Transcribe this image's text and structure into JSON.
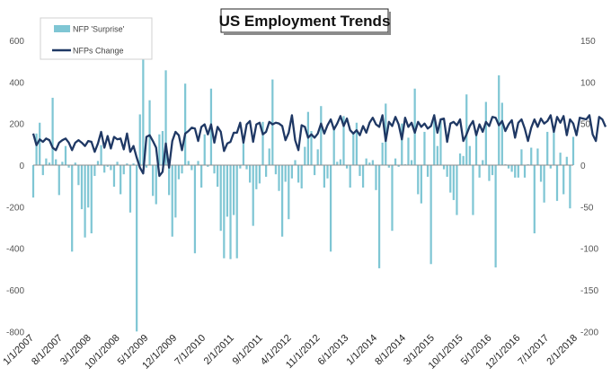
{
  "chart_data": {
    "type": "bar",
    "title": "US Employment Trends",
    "left_axis": {
      "min": -800,
      "max": 700,
      "ticks": [
        600,
        400,
        200,
        0,
        -200,
        -400,
        -600,
        -800
      ]
    },
    "right_axis": {
      "min": -200,
      "max": 175,
      "ticks": [
        150,
        100,
        50,
        0,
        -50,
        -100,
        -150,
        -200
      ]
    },
    "x_tick_labels": [
      "1/1/2007",
      "8/1/2007",
      "3/1/2008",
      "10/1/2008",
      "5/1/2009",
      "12/1/2009",
      "7/1/2010",
      "2/1/2011",
      "9/1/2011",
      "4/1/2012",
      "11/1/2012",
      "6/1/2013",
      "1/1/2014",
      "8/1/2014",
      "3/1/2015",
      "10/1/2015",
      "5/1/2016",
      "12/1/2016",
      "7/1/2017",
      "2/1/2018"
    ],
    "legend": {
      "position": "top-left"
    },
    "grid": false,
    "series": [
      {
        "name": "NFP 'Surprise'",
        "kind": "bar",
        "axis": "right",
        "color": "#7fc6d4",
        "values": [
          -39,
          38,
          51,
          -12,
          8,
          3,
          81,
          7,
          -36,
          4,
          23,
          -3,
          -104,
          3,
          -24,
          -53,
          -87,
          -51,
          -82,
          -13,
          5,
          24,
          -9,
          -2,
          -6,
          -26,
          4,
          -35,
          -11,
          2,
          -57,
          2,
          -200,
          61,
          170,
          -3,
          78,
          -37,
          -47,
          37,
          41,
          114,
          -36,
          -86,
          -63,
          -17,
          -10,
          98,
          5,
          -6,
          -106,
          5,
          -27,
          37,
          -2,
          92,
          -10,
          -26,
          -79,
          -112,
          -62,
          -113,
          -60,
          -112,
          -4,
          33,
          -5,
          -21,
          -73,
          -29,
          -22,
          52,
          -14,
          20,
          103,
          -11,
          -31,
          -86,
          -20,
          -65,
          -16,
          6,
          -21,
          -28,
          22,
          64,
          41,
          -12,
          19,
          71,
          -27,
          -16,
          -104,
          44,
          4,
          7,
          59,
          -4,
          -27,
          39,
          51,
          -13,
          -27,
          8,
          3,
          6,
          -30,
          -124,
          27,
          74,
          -3,
          -79,
          8,
          -2,
          50,
          1,
          33,
          6,
          92,
          -35,
          -46,
          40,
          -14,
          -119,
          61,
          23,
          56,
          -5,
          -14,
          -33,
          -42,
          -60,
          14,
          11,
          85,
          23,
          -60,
          40,
          -15,
          6,
          76,
          -19,
          -12,
          -123,
          108,
          75,
          1,
          -4,
          -8,
          -15,
          -15,
          19,
          -15,
          1,
          21,
          -82,
          20,
          -20,
          -45,
          40,
          -4,
          40,
          -43,
          15,
          -35,
          10,
          -52,
          34
        ]
      },
      {
        "name": "NFPs Change",
        "kind": "line",
        "axis": "right",
        "color": "#1f3864",
        "values": [
          38,
          24,
          31,
          28,
          32,
          30,
          21,
          18,
          27,
          30,
          32,
          27,
          18,
          27,
          30,
          27,
          23,
          29,
          28,
          16,
          26,
          40,
          21,
          35,
          20,
          34,
          31,
          32,
          19,
          38,
          16,
          23,
          9,
          -3,
          -10,
          34,
          36,
          29,
          21,
          -13,
          -8,
          26,
          -3,
          29,
          40,
          36,
          18,
          38,
          41,
          45,
          44,
          29,
          46,
          49,
          37,
          49,
          27,
          46,
          40,
          17,
          26,
          28,
          39,
          39,
          51,
          27,
          49,
          53,
          28,
          49,
          51,
          37,
          40,
          52,
          49,
          51,
          50,
          47,
          30,
          39,
          60,
          30,
          18,
          48,
          46,
          33,
          37,
          33,
          38,
          50,
          38,
          48,
          55,
          43,
          50,
          59,
          47,
          56,
          42,
          38,
          42,
          36,
          47,
          39,
          51,
          57,
          49,
          46,
          60,
          29,
          52,
          47,
          58,
          49,
          31,
          57,
          46,
          51,
          39,
          52,
          46,
          50,
          44,
          47,
          60,
          39,
          55,
          56,
          28,
          50,
          52,
          48,
          55,
          29,
          37,
          47,
          53,
          36,
          49,
          40,
          52,
          47,
          58,
          57,
          48,
          53,
          41,
          49,
          54,
          33,
          51,
          55,
          44,
          29,
          45,
          55,
          46,
          56,
          50,
          53,
          60,
          40,
          58,
          51,
          59,
          36,
          55,
          50,
          36,
          57,
          56,
          55,
          60,
          37,
          29,
          58,
          55,
          46
        ]
      }
    ]
  }
}
